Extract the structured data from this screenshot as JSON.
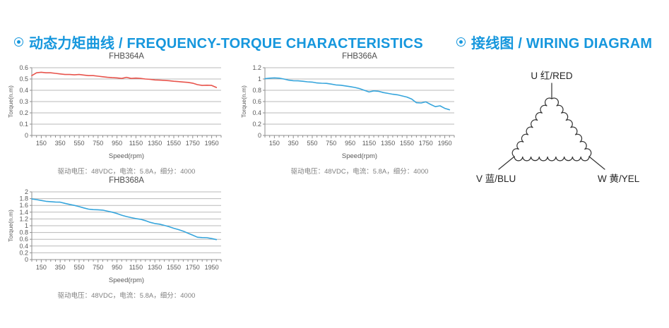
{
  "colors": {
    "accent": "#1697dd",
    "grid": "#b9b9b9",
    "axis": "#8f8f8f",
    "tick_text": "#595959",
    "title_text": "#4d4d4d",
    "caption_text": "#7f7f7f",
    "red_curve": "#e8544c",
    "blue_curve": "#36a5dc",
    "diagram_line": "#333333"
  },
  "sections": {
    "torque": {
      "icon": "circled-dot-icon",
      "title": "动态力矩曲线 / FREQUENCY-TORQUE CHARACTERISTICS"
    },
    "wiring": {
      "icon": "circled-dot-icon",
      "title": "接线图 / WIRING DIAGRAM"
    }
  },
  "chart_data": [
    {
      "type": "line",
      "title": "FHB364A",
      "xlabel": "Speed(rpm)",
      "ylabel": "Torque(n.m)",
      "caption": "驱动电压：48VDC，电流：5.8A，细分：4000",
      "grid": "horizontal",
      "legend": "none",
      "xlim": [
        50,
        2050
      ],
      "ylim": [
        0,
        0.6
      ],
      "x_ticks": [
        150,
        350,
        550,
        750,
        950,
        1150,
        1350,
        1550,
        1750,
        1950
      ],
      "x_minor_step": 50,
      "y_ticks": [
        0,
        0.1,
        0.2,
        0.3,
        0.4,
        0.5,
        0.6
      ],
      "line_color": "#e8544c",
      "x": [
        50,
        100,
        150,
        200,
        250,
        300,
        350,
        400,
        450,
        500,
        550,
        600,
        650,
        700,
        750,
        800,
        850,
        900,
        950,
        1000,
        1050,
        1100,
        1150,
        1200,
        1250,
        1300,
        1350,
        1400,
        1450,
        1500,
        1550,
        1600,
        1650,
        1700,
        1750,
        1800,
        1850,
        1900,
        1950,
        2000
      ],
      "values": [
        0.53,
        0.555,
        0.56,
        0.555,
        0.555,
        0.55,
        0.545,
        0.54,
        0.54,
        0.537,
        0.54,
        0.535,
        0.53,
        0.53,
        0.525,
        0.52,
        0.515,
        0.512,
        0.51,
        0.505,
        0.515,
        0.505,
        0.508,
        0.505,
        0.5,
        0.497,
        0.492,
        0.49,
        0.488,
        0.485,
        0.48,
        0.477,
        0.473,
        0.47,
        0.463,
        0.45,
        0.443,
        0.445,
        0.443,
        0.425
      ]
    },
    {
      "type": "line",
      "title": "FHB366A",
      "xlabel": "Speed(rpm)",
      "ylabel": "Torque(n.m)",
      "caption": "驱动电压：48VDC，电流：5.8A，细分：4000",
      "grid": "horizontal",
      "legend": "none",
      "xlim": [
        50,
        2050
      ],
      "ylim": [
        0,
        1.2
      ],
      "x_ticks": [
        150,
        350,
        550,
        750,
        950,
        1150,
        1350,
        1550,
        1750,
        1950
      ],
      "x_minor_step": 50,
      "y_ticks": [
        0,
        0.2,
        0.4,
        0.6,
        0.8,
        1,
        1.2
      ],
      "line_color": "#36a5dc",
      "x": [
        50,
        100,
        150,
        200,
        250,
        300,
        350,
        400,
        450,
        500,
        550,
        600,
        650,
        700,
        750,
        800,
        850,
        900,
        950,
        1000,
        1050,
        1100,
        1150,
        1200,
        1250,
        1300,
        1350,
        1400,
        1450,
        1500,
        1550,
        1600,
        1650,
        1700,
        1750,
        1800,
        1850,
        1900,
        1950,
        2000
      ],
      "values": [
        1.005,
        1.015,
        1.02,
        1.015,
        1.0,
        0.98,
        0.97,
        0.968,
        0.96,
        0.95,
        0.945,
        0.93,
        0.925,
        0.922,
        0.91,
        0.895,
        0.89,
        0.878,
        0.865,
        0.85,
        0.83,
        0.8,
        0.77,
        0.79,
        0.783,
        0.76,
        0.745,
        0.73,
        0.72,
        0.7,
        0.68,
        0.645,
        0.58,
        0.575,
        0.595,
        0.55,
        0.51,
        0.525,
        0.48,
        0.455
      ]
    },
    {
      "type": "line",
      "title": "FHB368A",
      "xlabel": "Speed(rpm)",
      "ylabel": "Torque(n.m)",
      "caption": "驱动电压：48VDC，电流：5.8A，细分：4000",
      "grid": "horizontal",
      "legend": "none",
      "xlim": [
        50,
        2050
      ],
      "ylim": [
        0,
        2
      ],
      "x_ticks": [
        150,
        350,
        550,
        750,
        950,
        1150,
        1350,
        1550,
        1750,
        1950
      ],
      "x_minor_step": 50,
      "y_ticks": [
        0,
        0.2,
        0.4,
        0.6,
        0.8,
        1,
        1.2,
        1.4,
        1.6,
        1.8,
        2
      ],
      "line_color": "#36a5dc",
      "x": [
        50,
        100,
        150,
        200,
        250,
        300,
        350,
        400,
        450,
        500,
        550,
        600,
        650,
        700,
        750,
        800,
        850,
        900,
        950,
        1000,
        1050,
        1100,
        1150,
        1200,
        1250,
        1300,
        1350,
        1400,
        1450,
        1500,
        1550,
        1600,
        1650,
        1700,
        1750,
        1800,
        1850,
        1900,
        1950,
        2000
      ],
      "values": [
        1.79,
        1.77,
        1.745,
        1.72,
        1.71,
        1.7,
        1.695,
        1.66,
        1.63,
        1.6,
        1.565,
        1.525,
        1.49,
        1.475,
        1.47,
        1.46,
        1.43,
        1.4,
        1.36,
        1.31,
        1.27,
        1.24,
        1.21,
        1.19,
        1.15,
        1.1,
        1.065,
        1.045,
        1.01,
        0.97,
        0.925,
        0.885,
        0.84,
        0.78,
        0.72,
        0.66,
        0.65,
        0.645,
        0.62,
        0.59
      ]
    }
  ],
  "wiring": {
    "type": "delta-winding",
    "terminals": [
      {
        "id": "U",
        "label": "U 红/RED"
      },
      {
        "id": "V",
        "label": "V 蓝/BLU"
      },
      {
        "id": "W",
        "label": "W 黄/YEL"
      }
    ]
  }
}
